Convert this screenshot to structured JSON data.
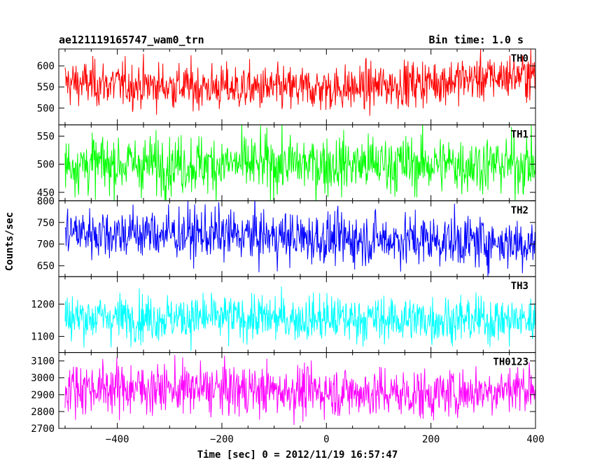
{
  "header": {
    "title": "ae121119165747_wam0_trn",
    "bin_time": "Bin time: 1.0 s"
  },
  "chart_data": {
    "type": "line",
    "xlabel": "Time [sec] 0 = 2012/11/19 16:57:47",
    "ylabel": "Counts/sec",
    "xlim": [
      -512,
      400
    ],
    "x_range": [
      -500,
      400
    ],
    "x_step": 1,
    "x_ticks": [
      -400,
      -200,
      0,
      200,
      400
    ],
    "panels": [
      {
        "name": "TH0",
        "color": "#ff0000",
        "ylim": [
          460,
          640
        ],
        "y_ticks": [
          500,
          550,
          600
        ],
        "mean": 555,
        "noise_sd": 27,
        "trend": [
          [
            -500,
            560
          ],
          [
            -300,
            552
          ],
          [
            -100,
            545
          ],
          [
            50,
            547
          ],
          [
            200,
            562
          ],
          [
            400,
            580
          ]
        ]
      },
      {
        "name": "TH1",
        "color": "#00ff00",
        "ylim": [
          435,
          570
        ],
        "y_ticks": [
          450,
          500,
          550
        ],
        "mean": 500,
        "noise_sd": 26,
        "trend": [
          [
            -500,
            500
          ],
          [
            400,
            500
          ]
        ]
      },
      {
        "name": "TH2",
        "color": "#0000ff",
        "ylim": [
          625,
          800
        ],
        "y_ticks": [
          650,
          700,
          750,
          800
        ],
        "mean": 718,
        "noise_sd": 30,
        "trend": [
          [
            -500,
            728
          ],
          [
            -200,
            722
          ],
          [
            0,
            712
          ],
          [
            200,
            710
          ],
          [
            400,
            702
          ]
        ]
      },
      {
        "name": "TH3",
        "color": "#00ffff",
        "ylim": [
          1050,
          1285
        ],
        "y_ticks": [
          1100,
          1200
        ],
        "mean": 1155,
        "noise_sd": 36,
        "trend": [
          [
            -500,
            1160
          ],
          [
            400,
            1150
          ]
        ]
      },
      {
        "name": "TH0123",
        "color": "#ff00ff",
        "ylim": [
          2700,
          3150
        ],
        "y_ticks": [
          2700,
          2800,
          2900,
          3000,
          3100
        ],
        "mean": 2935,
        "noise_sd": 75,
        "trend": [
          [
            -500,
            2945
          ],
          [
            0,
            2920
          ],
          [
            200,
            2900
          ],
          [
            400,
            2950
          ]
        ]
      }
    ]
  }
}
